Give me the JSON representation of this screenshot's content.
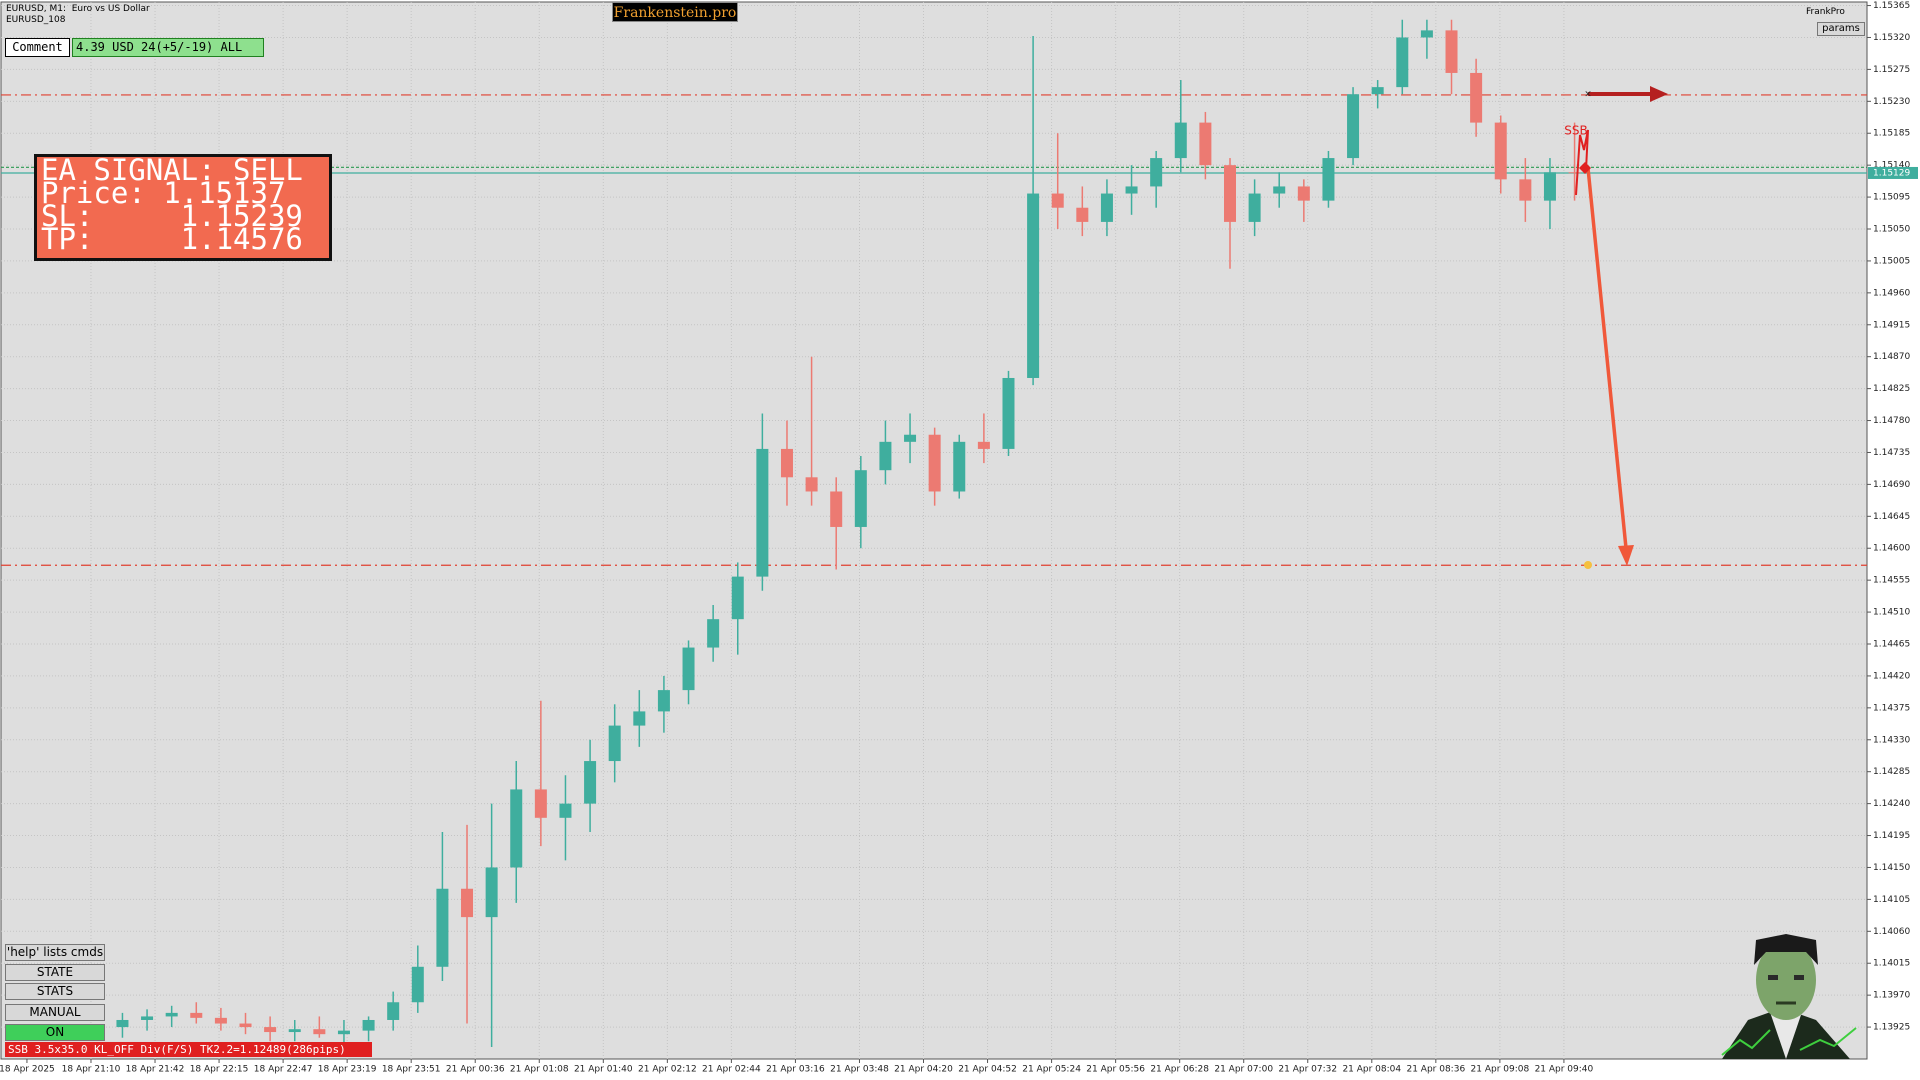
{
  "ui": {
    "symbol_line": "EURUSD, M1:  Euro vs US Dollar",
    "account_line": "EURUSD_108",
    "brand": "Frankenstein.pro",
    "comment_label": "Comment",
    "comment_value": "4.39 USD 24(+5/-19) ALL",
    "corner_name": "FrankPro",
    "params": "params",
    "signal": [
      "EA SIGNAL: SELL",
      "Price: 1.15137",
      "SL:     1.15239",
      "TP:     1.14576"
    ],
    "marker_label": "SSB",
    "buttons": [
      "'help' lists cmds",
      "STATE",
      "STATS",
      "MANUAL",
      "ON"
    ],
    "status": "SSB 3.5x35.0 KL_OFF Div(F/S) TK2.2=1.12489(286pips)"
  },
  "chart_data": {
    "type": "candlestick",
    "up_color": "#3fae9e",
    "down_color": "#ec7a72",
    "grid": true,
    "ylim": [
      1.1388,
      1.1537
    ],
    "yticks": [
      1.15365,
      {
        "value": 1.1532,
        "label": "1.15320"
      },
      1.15275,
      {
        "value": 1.1523,
        "label": "1.15230"
      },
      1.15185,
      {
        "value": 1.1514,
        "label": "1.15140"
      },
      1.15095,
      {
        "value": 1.1505,
        "label": "1.15050"
      },
      1.15005,
      {
        "value": 1.1496,
        "label": "1.14960"
      },
      1.14915,
      {
        "value": 1.1487,
        "label": "1.14870"
      },
      1.14825,
      {
        "value": 1.1478,
        "label": "1.14780"
      },
      1.14735,
      {
        "value": 1.1469,
        "label": "1.14690"
      },
      1.14645,
      {
        "value": 1.146,
        "label": "1.14600"
      },
      1.14555,
      {
        "value": 1.1451,
        "label": "1.14510"
      },
      1.14465,
      {
        "value": 1.1442,
        "label": "1.14420"
      },
      1.14375,
      {
        "value": 1.1433,
        "label": "1.14330"
      },
      1.14285,
      {
        "value": 1.1424,
        "label": "1.14240"
      },
      1.14195,
      {
        "value": 1.1415,
        "label": "1.14150"
      },
      1.14105,
      {
        "value": 1.1406,
        "label": "1.14060"
      },
      1.14015,
      {
        "value": 1.1397,
        "label": "1.13970"
      },
      1.13925
    ],
    "time_labels": [
      "18 Apr 2025",
      "18 Apr 21:10",
      "18 Apr 21:42",
      "18 Apr 22:15",
      "18 Apr 22:47",
      "18 Apr 23:19",
      "18 Apr 23:51",
      "21 Apr 00:36",
      "21 Apr 01:08",
      "21 Apr 01:40",
      "21 Apr 02:12",
      "21 Apr 02:44",
      "21 Apr 03:16",
      "21 Apr 03:48",
      "21 Apr 04:20",
      "21 Apr 04:52",
      "21 Apr 05:24",
      "21 Apr 05:56",
      "21 Apr 06:28",
      "21 Apr 07:00",
      "21 Apr 07:32",
      "21 Apr 08:04",
      "21 Apr 08:36",
      "21 Apr 09:08",
      "21 Apr 09:40"
    ],
    "current_price": 1.15129,
    "hlines": [
      {
        "value": 1.15239,
        "color": "#e04030"
      },
      {
        "value": 1.14576,
        "color": "#e04030"
      },
      {
        "value": 1.15137,
        "color": "#2a9a50"
      }
    ],
    "open": [
      1.13925,
      1.13935,
      1.1394,
      1.13945,
      1.13938,
      1.1393,
      1.13925,
      1.13918,
      1.13922,
      1.13915,
      1.1392,
      1.13935,
      1.1396,
      1.1401,
      1.1412,
      1.1408,
      1.1415,
      1.1426,
      1.1422,
      1.1424,
      1.143,
      1.1435,
      1.1437,
      1.144,
      1.1446,
      1.145,
      1.1456,
      1.1474,
      1.147,
      1.1468,
      1.1463,
      1.1471,
      1.1475,
      1.1476,
      1.1468,
      1.1475,
      1.1474,
      1.1484,
      1.151,
      1.1508,
      1.1506,
      1.151,
      1.1511,
      1.1515,
      1.152,
      1.1514,
      1.1506,
      1.151,
      1.1511,
      1.1509,
      1.1515,
      1.1524,
      1.1525,
      1.1532,
      1.1533,
      1.1527,
      1.152,
      1.1512,
      1.1509,
      1.1513
    ],
    "high": [
      1.13945,
      1.1395,
      1.13955,
      1.1396,
      1.13952,
      1.13945,
      1.1394,
      1.13935,
      1.1394,
      1.13935,
      1.1394,
      1.13975,
      1.1404,
      1.142,
      1.1421,
      1.1424,
      1.143,
      1.14385,
      1.1428,
      1.1433,
      1.1438,
      1.144,
      1.1442,
      1.1447,
      1.1452,
      1.1458,
      1.1479,
      1.1478,
      1.1487,
      1.147,
      1.1473,
      1.1478,
      1.1479,
      1.1477,
      1.1476,
      1.1479,
      1.1485,
      1.15322,
      1.15185,
      1.1511,
      1.1512,
      1.1514,
      1.1516,
      1.1526,
      1.15215,
      1.1515,
      1.1512,
      1.1513,
      1.1512,
      1.1516,
      1.1525,
      1.1526,
      1.15345,
      1.15345,
      1.15345,
      1.1529,
      1.1521,
      1.1515,
      1.1515,
      1.152
    ],
    "low": [
      1.1391,
      1.1392,
      1.13925,
      1.1393,
      1.1392,
      1.13915,
      1.13905,
      1.13905,
      1.1391,
      1.139,
      1.13905,
      1.1392,
      1.13945,
      1.1399,
      1.1393,
      1.13897,
      1.141,
      1.1418,
      1.1416,
      1.142,
      1.1427,
      1.1432,
      1.1434,
      1.1438,
      1.1444,
      1.1445,
      1.1454,
      1.1466,
      1.1466,
      1.1457,
      1.146,
      1.1469,
      1.1472,
      1.1466,
      1.1467,
      1.1472,
      1.1473,
      1.1483,
      1.1505,
      1.1504,
      1.1504,
      1.1507,
      1.1508,
      1.1513,
      1.1512,
      1.14994,
      1.1504,
      1.1508,
      1.1506,
      1.1508,
      1.1514,
      1.1522,
      1.1524,
      1.1529,
      1.1524,
      1.1518,
      1.151,
      1.1506,
      1.1505,
      1.1509
    ],
    "close": [
      1.13935,
      1.1394,
      1.13945,
      1.13938,
      1.1393,
      1.13925,
      1.13918,
      1.13922,
      1.13915,
      1.1392,
      1.13935,
      1.1396,
      1.1401,
      1.1412,
      1.1408,
      1.1415,
      1.1426,
      1.1422,
      1.1424,
      1.143,
      1.1435,
      1.1437,
      1.144,
      1.1446,
      1.145,
      1.1456,
      1.1474,
      1.147,
      1.1468,
      1.1463,
      1.1471,
      1.1475,
      1.1476,
      1.1468,
      1.1475,
      1.1474,
      1.1484,
      1.151,
      1.1508,
      1.1506,
      1.151,
      1.1511,
      1.1515,
      1.152,
      1.1514,
      1.1506,
      1.151,
      1.1511,
      1.1509,
      1.1515,
      1.1524,
      1.1525,
      1.1532,
      1.1533,
      1.1527,
      1.152,
      1.1512,
      1.1509,
      1.1513,
      1.15129
    ]
  }
}
